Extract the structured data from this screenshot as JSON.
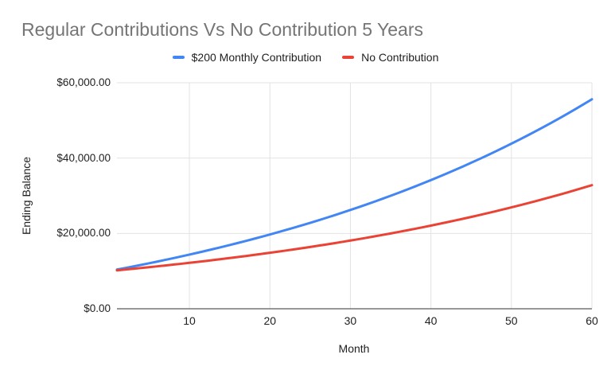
{
  "chart_data": {
    "type": "line",
    "title": "Regular Contributions Vs No Contribution 5 Years",
    "xlabel": "Month",
    "ylabel": "Ending Balance",
    "xlim": [
      1,
      60
    ],
    "ylim": [
      0,
      60000
    ],
    "x_ticks": [
      10,
      20,
      30,
      40,
      50,
      60
    ],
    "y_ticks": [
      {
        "value": 0,
        "label": "$0.00"
      },
      {
        "value": 20000,
        "label": "$20,000.00"
      },
      {
        "value": 40000,
        "label": "$40,000.00"
      },
      {
        "value": 60000,
        "label": "$60,000.00"
      }
    ],
    "grid": true,
    "legend_position": "top",
    "x": [
      1,
      2,
      3,
      4,
      5,
      6,
      7,
      8,
      9,
      10,
      11,
      12,
      13,
      14,
      15,
      16,
      17,
      18,
      19,
      20,
      21,
      22,
      23,
      24,
      25,
      26,
      27,
      28,
      29,
      30,
      31,
      32,
      33,
      34,
      35,
      36,
      37,
      38,
      39,
      40,
      41,
      42,
      43,
      44,
      45,
      46,
      47,
      48,
      49,
      50,
      51,
      52,
      53,
      54,
      55,
      56,
      57,
      58,
      59,
      60
    ],
    "series": [
      {
        "name": "$200 Monthly Contribution",
        "color": "#4285f4",
        "values": [
          10400.0,
          10808.0,
          11224.16,
          11648.64,
          12081.62,
          12523.25,
          12973.71,
          13433.19,
          13901.85,
          14379.89,
          14867.49,
          15364.84,
          15872.13,
          16389.58,
          16917.37,
          17455.71,
          18004.83,
          18564.92,
          19136.22,
          19718.95,
          20313.33,
          20919.59,
          21537.99,
          22168.74,
          22812.12,
          23468.36,
          24137.73,
          24820.48,
          25516.89,
          26227.23,
          26951.78,
          27690.81,
          28444.63,
          29213.52,
          29997.79,
          30797.75,
          31613.7,
          32445.98,
          33294.9,
          34160.79,
          35044.01,
          35944.89,
          36863.79,
          37801.06,
          38757.08,
          39732.23,
          40726.87,
          41741.41,
          42776.24,
          43831.76,
          44908.4,
          46006.56,
          47126.69,
          48269.23,
          49434.61,
          50623.31,
          51835.77,
          53072.49,
          54333.94,
          55620.62
        ]
      },
      {
        "name": "No Contribution",
        "color": "#ea4335",
        "values": [
          10200.0,
          10404.0,
          10612.08,
          10824.32,
          11040.81,
          11261.62,
          11486.86,
          11716.59,
          11950.93,
          12189.94,
          12433.74,
          12682.42,
          12936.07,
          13194.79,
          13458.68,
          13727.86,
          14002.41,
          14282.46,
          14568.11,
          14859.47,
          15156.66,
          15459.8,
          15768.99,
          16084.37,
          16406.06,
          16734.18,
          17068.86,
          17410.24,
          17758.45,
          18113.62,
          18475.89,
          18845.41,
          19222.31,
          19606.76,
          19998.9,
          20398.87,
          20806.85,
          21222.99,
          21647.45,
          22080.4,
          22522.0,
          22972.44,
          23431.89,
          23900.53,
          24378.54,
          24866.11,
          25363.44,
          25870.7,
          26388.12,
          26915.88,
          27454.2,
          28003.28,
          28563.35,
          29134.61,
          29717.31,
          30311.65,
          30917.89,
          31536.24,
          32166.97,
          32810.31
        ]
      }
    ]
  },
  "colors": {
    "background": "#ffffff",
    "title_text": "#757575",
    "axis_text": "#212121",
    "gridline": "#e3e3e3",
    "axis_line": "#757575"
  }
}
